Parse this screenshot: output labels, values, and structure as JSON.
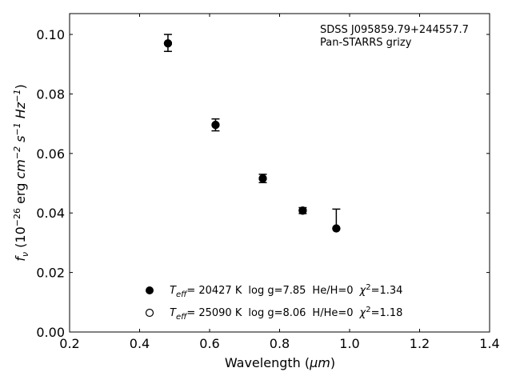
{
  "chart_data": {
    "type": "scatter",
    "annotation_lines": [
      "SDSS J095859.79+244557.7",
      "Pan-STARRS grizy"
    ],
    "xlabel_text": "Wavelength (",
    "xlabel_unit": "μm",
    "xlabel_close": ")",
    "ylabel": "f_ν (10^-26 erg cm^-2 s^-1 Hz^-1)",
    "xlim": [
      0.2,
      1.4
    ],
    "ylim": [
      0.0,
      0.107
    ],
    "xticks": [
      0.2,
      0.4,
      0.6,
      0.8,
      1.0,
      1.2,
      1.4
    ],
    "xtick_labels": [
      "0.2",
      "0.4",
      "0.6",
      "0.8",
      "1.0",
      "1.2",
      "1.4"
    ],
    "yticks": [
      0.0,
      0.02,
      0.04,
      0.06,
      0.08,
      0.1
    ],
    "ytick_labels": [
      "0.00",
      "0.02",
      "0.04",
      "0.06",
      "0.08",
      "0.10"
    ],
    "grid": false,
    "legend_placement": "lower-center",
    "observed": {
      "x": [
        0.481,
        0.617,
        0.752,
        0.866,
        0.962
      ],
      "y": [
        0.097,
        0.0696,
        0.0516,
        0.0408,
        0.0348
      ],
      "yerr_low": [
        0.0027,
        0.002,
        0.0014,
        0.001,
        0.0
      ],
      "yerr_high": [
        0.003,
        0.002,
        0.0014,
        0.001,
        0.0065
      ],
      "marker": "filled-circle",
      "color": "#000000"
    },
    "models": [
      {
        "marker": "filled-circle",
        "x": [
          0.481,
          0.617,
          0.752,
          0.866,
          0.962
        ],
        "y": [
          0.097,
          0.0696,
          0.0516,
          0.0408,
          0.0348
        ],
        "teff": "= 20427 K",
        "logg": "log g=7.85",
        "comp": "He/H=0",
        "chi2": "=1.34"
      },
      {
        "marker": "open-circle",
        "x": [
          0.481,
          0.617,
          0.752,
          0.866,
          0.962
        ],
        "y": [
          0.097,
          0.0696,
          0.0516,
          0.0408,
          0.0348
        ],
        "teff": "= 25090 K",
        "logg": "log g=8.06",
        "comp": "H/He=0",
        "chi2": "=1.18"
      }
    ]
  }
}
